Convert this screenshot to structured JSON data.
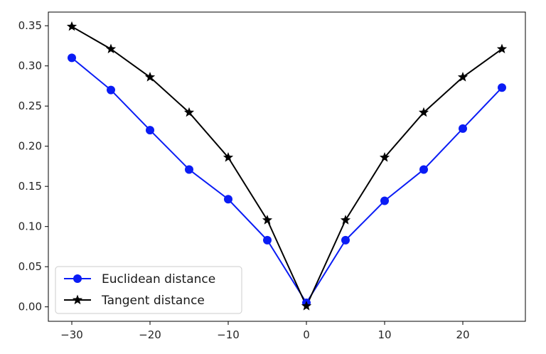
{
  "chart_data": {
    "type": "line",
    "x": [
      -30,
      -25,
      -20,
      -15,
      -10,
      -5,
      0,
      5,
      10,
      15,
      20,
      25
    ],
    "series": [
      {
        "name": "Euclidean distance",
        "color": "#0a1cf5",
        "marker": "circle",
        "values": [
          0.31,
          0.27,
          0.22,
          0.171,
          0.134,
          0.083,
          0.005,
          0.083,
          0.132,
          0.171,
          0.222,
          0.273
        ]
      },
      {
        "name": "Tangent distance",
        "color": "#000000",
        "marker": "star",
        "values": [
          0.349,
          0.321,
          0.286,
          0.242,
          0.186,
          0.108,
          0.001,
          0.108,
          0.186,
          0.242,
          0.286,
          0.321
        ]
      }
    ],
    "xlim": [
      -33,
      28
    ],
    "ylim": [
      -0.018,
      0.367
    ],
    "xticks": [
      "−30",
      "−20",
      "−10",
      "0",
      "10",
      "20"
    ],
    "xtick_values": [
      -30,
      -20,
      -10,
      0,
      10,
      20
    ],
    "yticks": [
      "0.00",
      "0.05",
      "0.10",
      "0.15",
      "0.20",
      "0.25",
      "0.30",
      "0.35"
    ],
    "ytick_values": [
      0,
      0.05,
      0.1,
      0.15,
      0.2,
      0.25,
      0.3,
      0.35
    ],
    "grid": false,
    "legend_position": "lower-left"
  }
}
